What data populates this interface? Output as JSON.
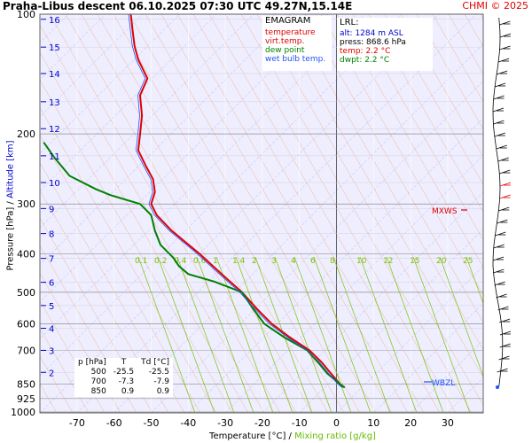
{
  "header": {
    "title": "Praha-Libus   descent   06.10.2025 07:30 UTC  49.27N,15.14E",
    "copyright": "CHMI © 2025"
  },
  "legend": {
    "title": "EMAGRAM",
    "items": [
      {
        "label": "temperature",
        "color": "#e00000"
      },
      {
        "label": "virt.temp.",
        "color": "#e00000"
      },
      {
        "label": "dew point",
        "color": "#008000"
      },
      {
        "label": "wet bulb temp.",
        "color": "#2050ff"
      }
    ]
  },
  "lrl": {
    "title": "LRL:",
    "alt": "alt: 1284 m ASL",
    "press": "press: 868.6 hPa",
    "temp": "temp: 2.2 °C",
    "dwpt": "dwpt: 2.2 °C"
  },
  "table": {
    "headers": [
      "p [hPa]",
      "T",
      "Td [°C]"
    ],
    "rows": [
      [
        "500",
        "-25.5",
        "-25.5"
      ],
      [
        "700",
        "-7.3",
        "-7.9"
      ],
      [
        "850",
        "0.9",
        "0.9"
      ]
    ]
  },
  "markers": {
    "mxws": "MXWS",
    "wbzl": "WBZL"
  },
  "axes": {
    "xlabel_a": "Temperature [°C]  /  ",
    "xlabel_b": "Mixing ratio [g/kg]",
    "ylabel_a": "Pressure [hPa]  /  ",
    "ylabel_b": "Altitude [km]"
  },
  "colors": {
    "temperature": "#e00000",
    "dewpoint": "#008000",
    "wetbulb": "#2050ff",
    "altitude": "#0000cc",
    "mixing": "#80c000",
    "dry_adiabat": "#f0a070",
    "grid": "#909090"
  },
  "chart_data": {
    "type": "line",
    "title": "Praha-Libus   descent   06.10.2025 07:30 UTC  49.27N,15.14E",
    "xlabel": "Temperature [°C]  /  Mixing ratio [g/kg]",
    "ylabel": "Pressure [hPa]  /  Altitude [km]",
    "xlim": [
      -80,
      40
    ],
    "ylim": [
      1000,
      100
    ],
    "y_scale": "log",
    "x_ticks": [
      -70,
      -60,
      -50,
      -40,
      -30,
      -20,
      -10,
      0,
      10,
      20,
      30
    ],
    "p_ticks": [
      100,
      200,
      300,
      400,
      500,
      600,
      700,
      850,
      925,
      1000
    ],
    "altitude_ticks": [
      {
        "km": "2",
        "p": 795
      },
      {
        "km": "3",
        "p": 700
      },
      {
        "km": "4",
        "p": 616
      },
      {
        "km": "5",
        "p": 540
      },
      {
        "km": "6",
        "p": 472
      },
      {
        "km": "7",
        "p": 411
      },
      {
        "km": "8",
        "p": 356
      },
      {
        "km": "9",
        "p": 308
      },
      {
        "km": "10",
        "p": 265
      },
      {
        "km": "11",
        "p": 227
      },
      {
        "km": "12",
        "p": 194
      },
      {
        "km": "13",
        "p": 166
      },
      {
        "km": "14",
        "p": 141
      },
      {
        "km": "15",
        "p": 121
      },
      {
        "km": "16",
        "p": 103
      }
    ],
    "mixing_ratio_labels": [
      "0.1",
      "0.2",
      "0.4",
      "0.6",
      "1",
      "1.4",
      "2",
      "3",
      "4",
      "6",
      "8",
      "10",
      "12",
      "15",
      "20",
      "25"
    ],
    "series": [
      {
        "name": "temperature",
        "points": [
          {
            "p": 868.6,
            "t": 2.2
          },
          {
            "p": 850,
            "t": 0.9
          },
          {
            "p": 800,
            "t": -1.5
          },
          {
            "p": 750,
            "t": -4.0
          },
          {
            "p": 700,
            "t": -7.3
          },
          {
            "p": 650,
            "t": -12.5
          },
          {
            "p": 600,
            "t": -17.5
          },
          {
            "p": 550,
            "t": -21.5
          },
          {
            "p": 500,
            "t": -25.5
          },
          {
            "p": 450,
            "t": -31.0
          },
          {
            "p": 400,
            "t": -37.0
          },
          {
            "p": 350,
            "t": -44.5
          },
          {
            "p": 320,
            "t": -48.5
          },
          {
            "p": 300,
            "t": -50.0
          },
          {
            "p": 280,
            "t": -49.0
          },
          {
            "p": 260,
            "t": -49.5
          },
          {
            "p": 240,
            "t": -51.5
          },
          {
            "p": 220,
            "t": -53.5
          },
          {
            "p": 200,
            "t": -53.0
          },
          {
            "p": 180,
            "t": -52.5
          },
          {
            "p": 160,
            "t": -53.0
          },
          {
            "p": 145,
            "t": -51.0
          },
          {
            "p": 130,
            "t": -53.5
          },
          {
            "p": 120,
            "t": -54.5
          },
          {
            "p": 110,
            "t": -55.0
          },
          {
            "p": 100,
            "t": -55.5
          }
        ]
      },
      {
        "name": "dew point",
        "points": [
          {
            "p": 868.6,
            "t": 2.2
          },
          {
            "p": 850,
            "t": 0.9
          },
          {
            "p": 800,
            "t": -2.5
          },
          {
            "p": 750,
            "t": -5.0
          },
          {
            "p": 700,
            "t": -7.9
          },
          {
            "p": 650,
            "t": -14.0
          },
          {
            "p": 600,
            "t": -19.5
          },
          {
            "p": 550,
            "t": -22.5
          },
          {
            "p": 500,
            "t": -25.5
          },
          {
            "p": 470,
            "t": -33.0
          },
          {
            "p": 450,
            "t": -40.0
          },
          {
            "p": 430,
            "t": -42.5
          },
          {
            "p": 410,
            "t": -44.0
          },
          {
            "p": 380,
            "t": -47.5
          },
          {
            "p": 350,
            "t": -49.0
          },
          {
            "p": 320,
            "t": -50.0
          },
          {
            "p": 300,
            "t": -53.0
          },
          {
            "p": 285,
            "t": -61.0
          },
          {
            "p": 275,
            "t": -65.0
          },
          {
            "p": 255,
            "t": -72.0
          },
          {
            "p": 230,
            "t": -76.0
          },
          {
            "p": 210,
            "t": -79.0
          }
        ]
      }
    ]
  }
}
